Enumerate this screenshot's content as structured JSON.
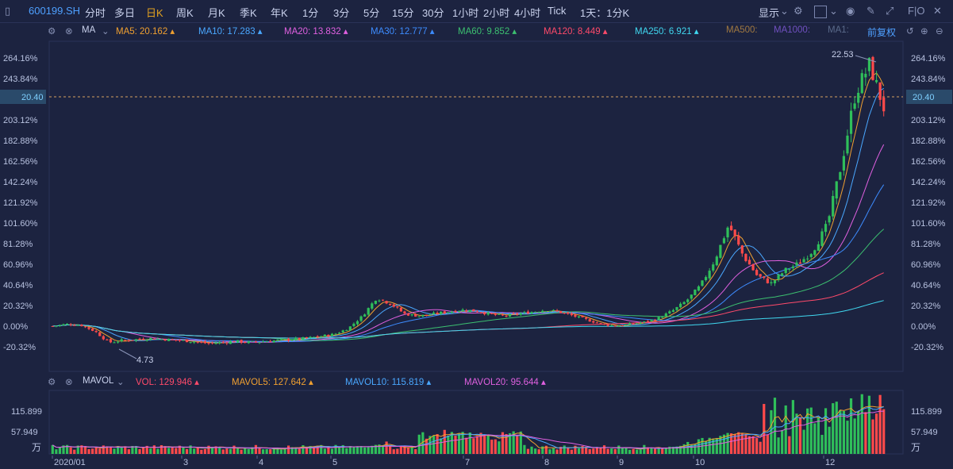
{
  "toolbar": {
    "symbol": "600199.SH",
    "periods": [
      "分时",
      "多日",
      "日K",
      "周K",
      "月K",
      "季K",
      "年K",
      "1分",
      "3分",
      "5分",
      "15分",
      "30分",
      "1小时",
      "2小时",
      "4小时",
      "Tick"
    ],
    "active_period": "日K",
    "range": "1天：1分K",
    "display": "显示",
    "fio": "F|O"
  },
  "ma_legend": {
    "label": "MA",
    "items": [
      "MA5: 20.162",
      "MA10: 17.283",
      "MA20: 13.832",
      "MA30: 12.777",
      "MA60: 9.852",
      "MA120: 8.449",
      "MA250: 6.921",
      "MA500:",
      "MA1000:",
      "MA1:"
    ],
    "colors": [
      "#f0a030",
      "#4aa8ff",
      "#e060e0",
      "#3d8cff",
      "#3cc070",
      "#ff4a6a",
      "#40d8f0",
      "#a07840",
      "#7050c0",
      "#5a6a8a"
    ],
    "adjust": "前复权"
  },
  "vol_legend": {
    "label": "MAVOL",
    "items": [
      "VOL: 129.946",
      "MAVOL5: 127.642",
      "MAVOL10: 115.819",
      "MAVOL20: 95.644"
    ],
    "colors": [
      "#ff4a6a",
      "#f0a030",
      "#4aa8ff",
      "#e060e0"
    ]
  },
  "chart_data": {
    "type": "candlestick",
    "y_axis_ticks": [
      "264.16%",
      "243.84%",
      "203.12%",
      "182.88%",
      "162.56%",
      "142.24%",
      "121.92%",
      "101.60%",
      "81.28%",
      "60.96%",
      "40.64%",
      "20.32%",
      "0.00%",
      "-20.32%"
    ],
    "current_price_label": "20.40",
    "high_label": "22.53",
    "low_label": "4.73",
    "x_labels": [
      "2020/01",
      "3",
      "4",
      "5",
      "7",
      "8",
      "9",
      "10",
      "12"
    ],
    "volume_axis_ticks": [
      "115.899",
      "57.949"
    ],
    "volume_unit": "万",
    "ma_values": {
      "MA5": 20.162,
      "MA10": 17.283,
      "MA20": 13.832,
      "MA30": 12.777,
      "MA60": 9.852,
      "MA120": 8.449,
      "MA250": 6.921
    },
    "volume_values": {
      "VOL": 129.946,
      "MAVOL5": 127.642,
      "MAVOL10": 115.819,
      "MAVOL20": 95.644
    },
    "price_path_percent": [
      0,
      2,
      1,
      -5,
      -16,
      -14,
      -13,
      -12,
      -13,
      -14,
      -15,
      -17,
      -16,
      -15,
      -16,
      -15,
      -14,
      -13,
      -12,
      -10,
      -8,
      -2,
      10,
      28,
      22,
      12,
      10,
      12,
      14,
      16,
      15,
      12,
      10,
      12,
      14,
      16,
      14,
      10,
      6,
      2,
      0,
      2,
      4,
      8,
      15,
      25,
      40,
      65,
      100,
      70,
      50,
      42,
      55,
      62,
      75,
      100,
      160,
      230,
      258,
      215
    ]
  }
}
